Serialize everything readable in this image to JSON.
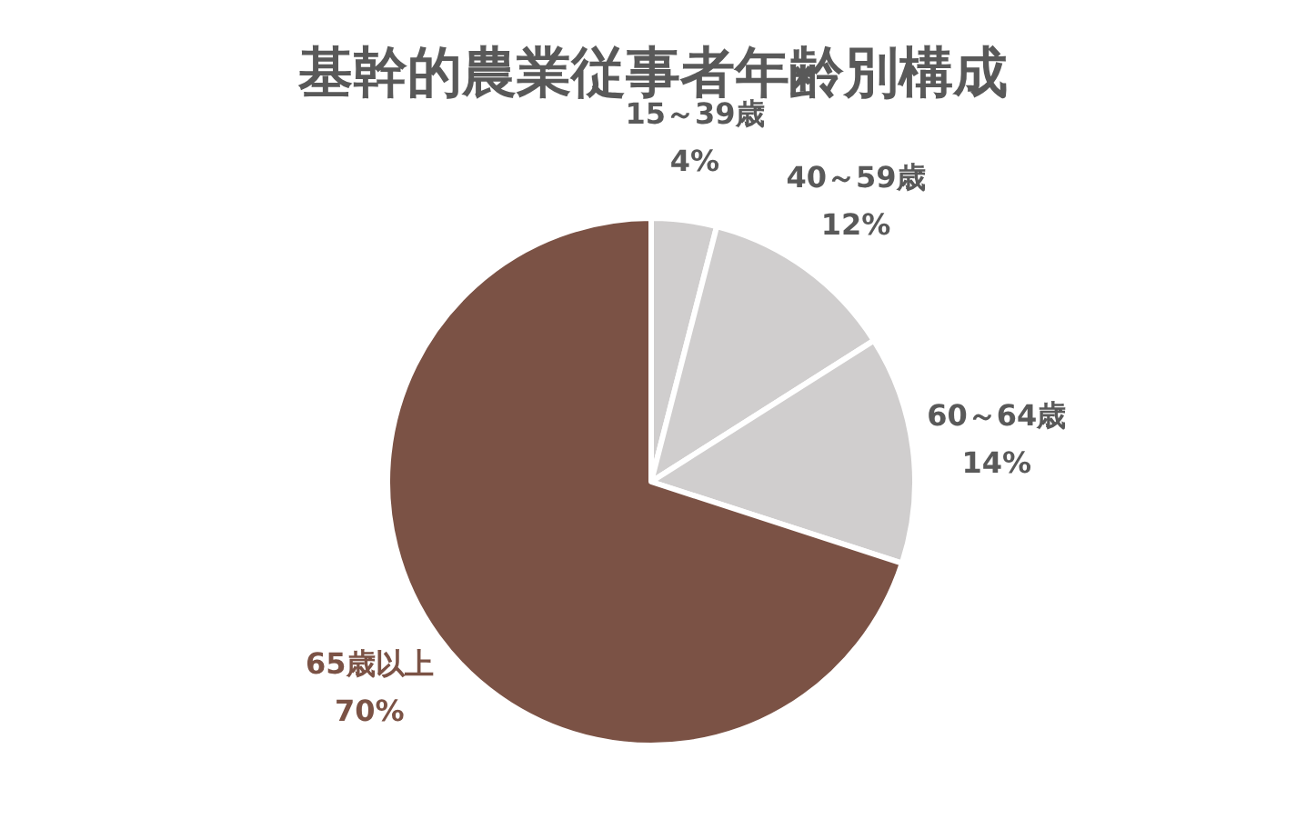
{
  "chart_data": {
    "type": "pie",
    "title": "基幹的農業従事者年齢別構成",
    "categories": [
      "15～39歳",
      "40～59歳",
      "60～64歳",
      "65歳以上"
    ],
    "values": [
      4,
      12,
      14,
      70
    ],
    "value_labels": [
      "4%",
      "12%",
      "14%",
      "70%"
    ],
    "colors": [
      "#d0cece",
      "#d0cece",
      "#d0cece",
      "#7b5245"
    ]
  }
}
